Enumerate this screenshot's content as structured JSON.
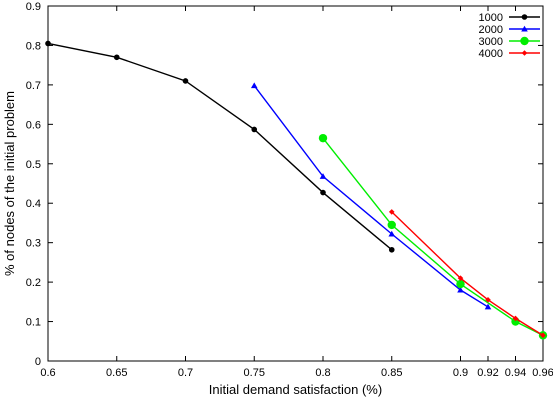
{
  "chart_data": {
    "type": "line",
    "xlabel": "Initial demand satisfaction (%)",
    "ylabel": "% of nodes of the initial problem",
    "xlim": [
      0.6,
      0.96
    ],
    "ylim": [
      0,
      0.9
    ],
    "x_ticks": [
      0.6,
      0.65,
      0.7,
      0.75,
      0.8,
      0.85,
      0.9,
      0.92,
      0.94,
      0.96
    ],
    "x_tick_labels": [
      "0.6",
      "0.65",
      "0.7",
      "0.75",
      "0.8",
      "0.85",
      "0.9",
      "0.92",
      "0.94",
      "0.96"
    ],
    "y_ticks": [
      0,
      0.1,
      0.2,
      0.3,
      0.4,
      0.5,
      0.6,
      0.7,
      0.8,
      0.9
    ],
    "y_tick_labels": [
      "0",
      "0.1",
      "0.2",
      "0.3",
      "0.4",
      "0.5",
      "0.6",
      "0.7",
      "0.8",
      "0.9"
    ],
    "grid": false,
    "legend_position": "top-right",
    "series": [
      {
        "name": "1000",
        "color": "#000000",
        "marker": "circle",
        "x": [
          0.6,
          0.65,
          0.7,
          0.75,
          0.8,
          0.85
        ],
        "y": [
          0.805,
          0.77,
          0.71,
          0.587,
          0.427,
          0.282
        ]
      },
      {
        "name": "2000",
        "color": "#0000ff",
        "marker": "triangle",
        "x": [
          0.75,
          0.8,
          0.85,
          0.9,
          0.92
        ],
        "y": [
          0.698,
          0.468,
          0.322,
          0.18,
          0.137
        ]
      },
      {
        "name": "3000",
        "color": "#00ee00",
        "marker": "big-circle",
        "x": [
          0.8,
          0.85,
          0.9,
          0.94,
          0.96
        ],
        "y": [
          0.565,
          0.345,
          0.195,
          0.1,
          0.065
        ]
      },
      {
        "name": "4000",
        "color": "#ff0000",
        "marker": "diamond",
        "x": [
          0.85,
          0.9,
          0.92,
          0.94,
          0.96
        ],
        "y": [
          0.378,
          0.21,
          0.155,
          0.108,
          0.065
        ]
      }
    ]
  }
}
